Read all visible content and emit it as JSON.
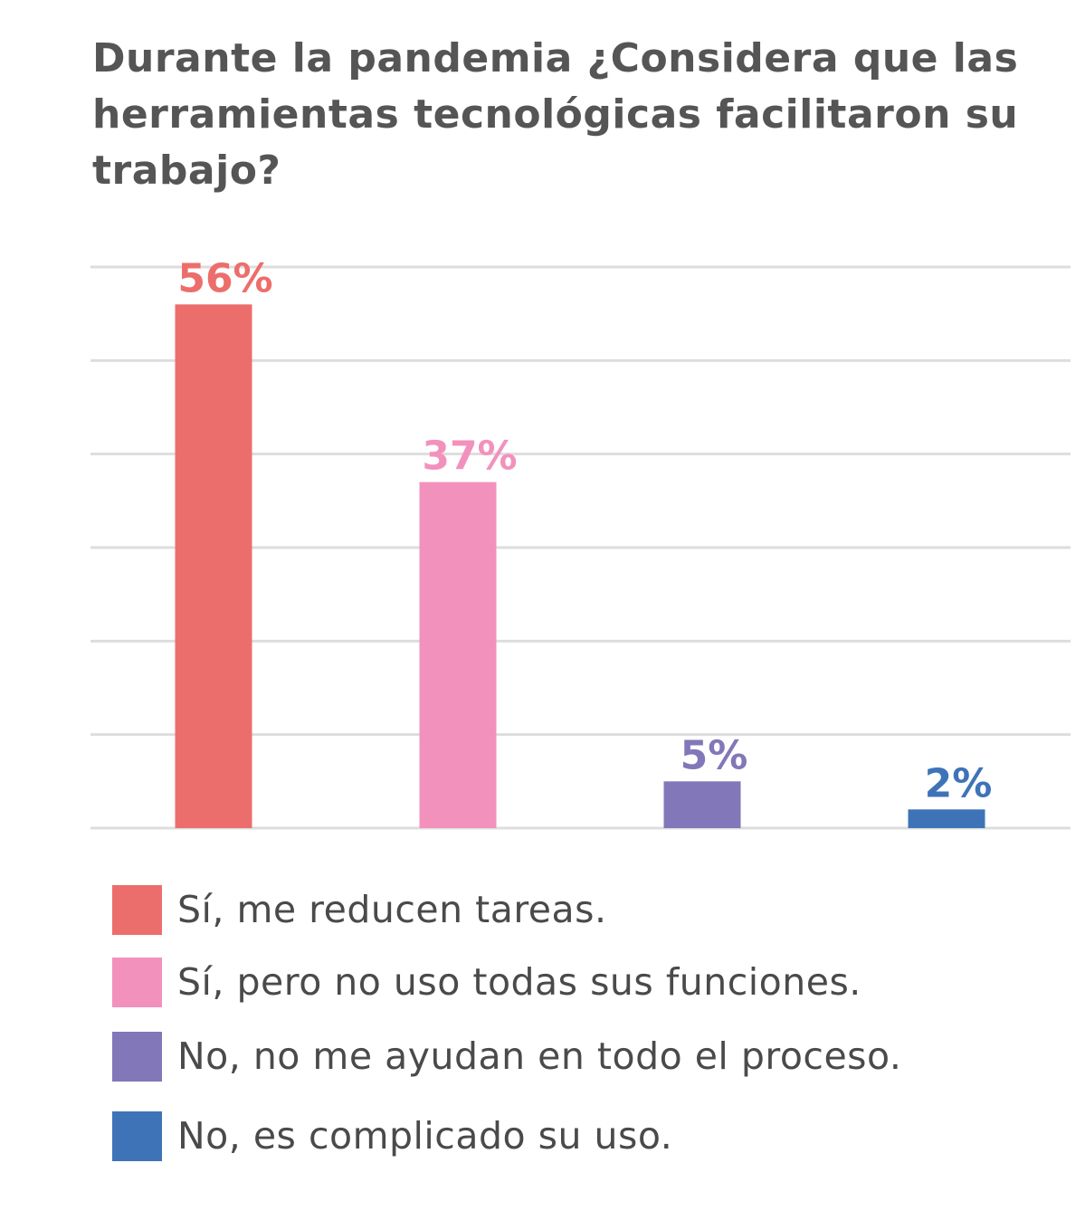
{
  "chart_data": {
    "type": "bar",
    "title": "Durante la pandemia ¿Considera que las herramientas tecnológicas facilitaron su trabajo?",
    "xlabel": "",
    "ylabel": "",
    "ylim": [
      0,
      60
    ],
    "grid": true,
    "legend_position": "bottom",
    "categories": [
      "Sí, me reducen tareas.",
      "Sí, pero no uso todas sus funciones.",
      "No, no me ayudan en todo el proceso.",
      "No, es complicado su uso."
    ],
    "values": [
      56,
      37,
      5,
      2
    ],
    "data_labels": [
      "56%",
      "37%",
      "5%",
      "2%"
    ],
    "colors": [
      "#ec6e6c",
      "#f391bd",
      "#8277b8",
      "#3f73b8"
    ]
  },
  "colors": {
    "title": "#555555",
    "grid": "#dddddd",
    "legend_text": "#4a4a4a"
  }
}
